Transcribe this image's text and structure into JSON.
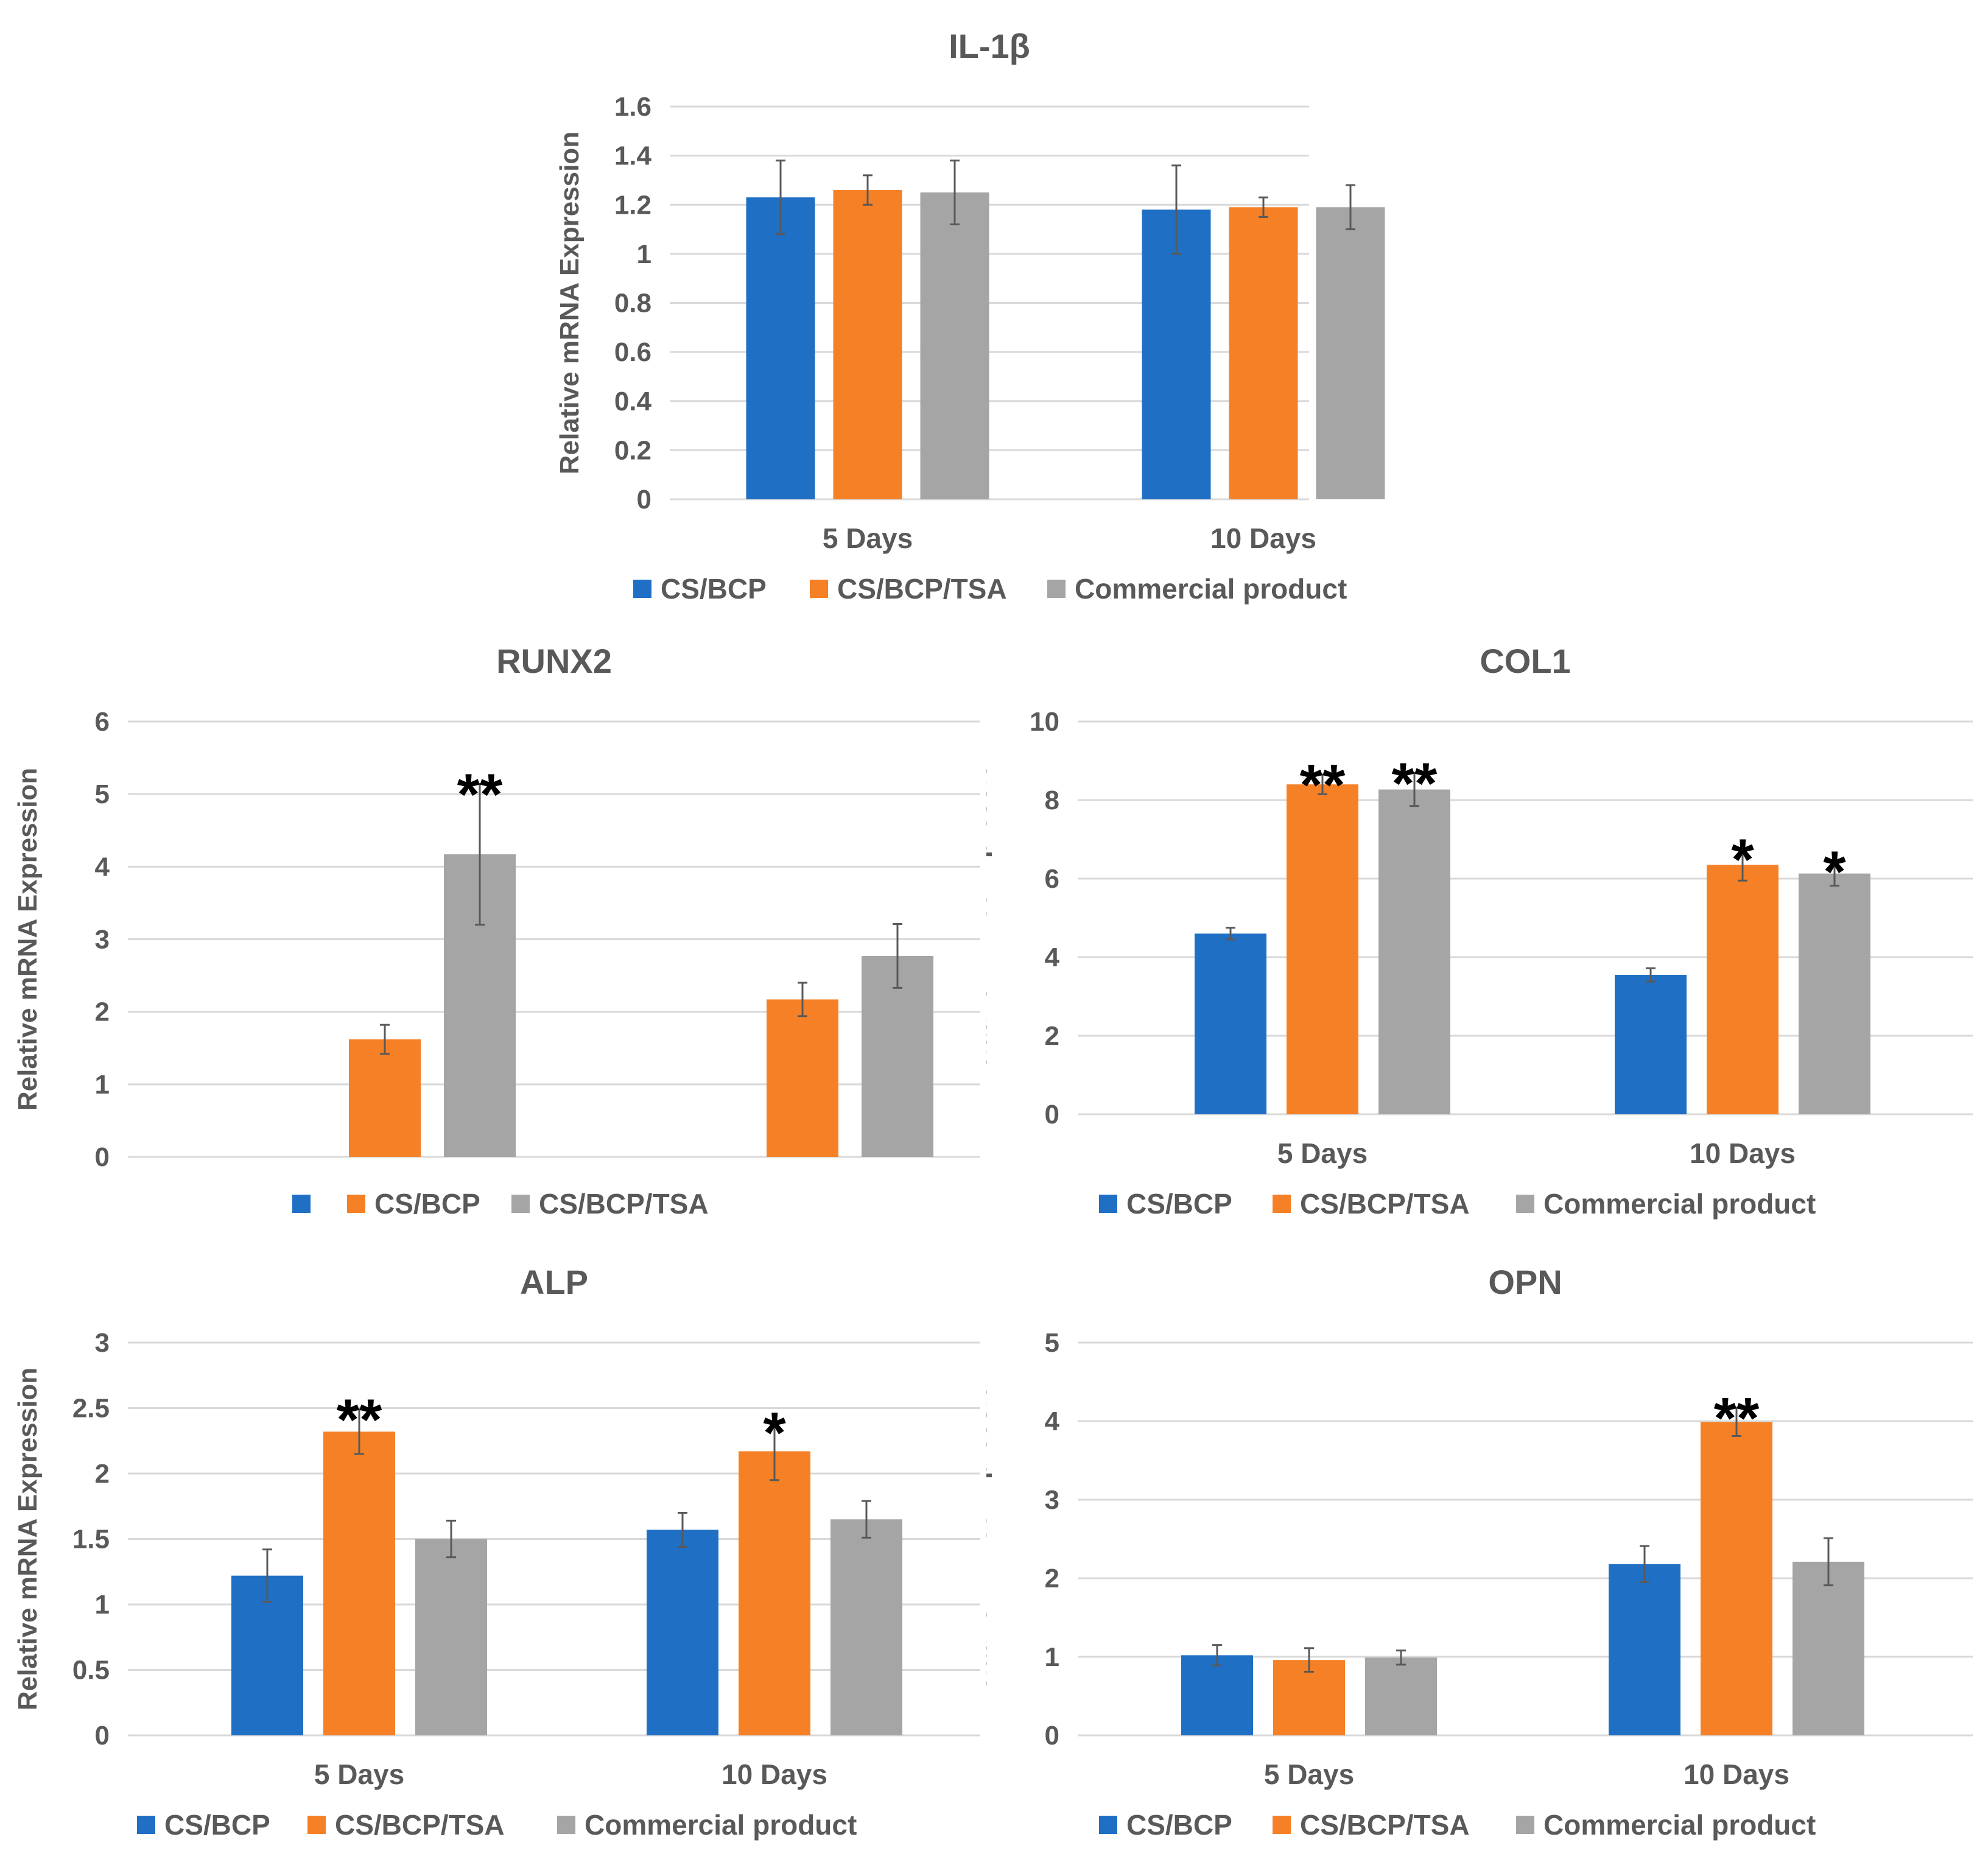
{
  "colors": {
    "cs_bcp": "#1f6fc5",
    "cs_bcp_tsa": "#f68026",
    "commercial": "#a5a5a5",
    "text": "#595959",
    "grid": "#d9d9d9",
    "significance": "#000000"
  },
  "chart_data": [
    {
      "id": "il1b",
      "type": "bar",
      "title": "IL-1β",
      "ylabel": "Relative mRNA Expression",
      "xlabel": "",
      "ylim": [
        0,
        1.6
      ],
      "yticks": [
        "0",
        "0.2",
        "0.4",
        "0.6",
        "0.8",
        "1",
        "1.2",
        "1.4",
        "1.6"
      ],
      "grid": true,
      "categories": [
        "5 Days",
        "10 Days"
      ],
      "legend": [
        "CS/BCP",
        "CS/BCP/TSA",
        "Commercial product"
      ],
      "series": [
        {
          "name": "CS/BCP",
          "values": [
            1.23,
            1.18
          ],
          "errors": [
            0.15,
            0.18
          ],
          "significance": [
            "",
            ""
          ]
        },
        {
          "name": "CS/BCP/TSA",
          "values": [
            1.26,
            1.19
          ],
          "errors": [
            0.06,
            0.04
          ],
          "significance": [
            "",
            ""
          ]
        },
        {
          "name": "Commercial product",
          "values": [
            1.25,
            1.19
          ],
          "errors": [
            0.13,
            0.09
          ],
          "significance": [
            "",
            ""
          ]
        }
      ]
    },
    {
      "id": "runx2",
      "type": "bar",
      "title": "RUNX2",
      "ylabel": "Relative mRNA Expression",
      "xlabel": "",
      "ylim": [
        0,
        6
      ],
      "yticks": [
        "0",
        "1",
        "2",
        "3",
        "4",
        "5",
        "6"
      ],
      "grid": true,
      "categories": [
        "",
        ""
      ],
      "legend": [
        "",
        "CS/BCP",
        "CS/BCP/TSA"
      ],
      "series": [
        {
          "name": "",
          "values": [
            null,
            null
          ],
          "errors": [
            null,
            null
          ],
          "significance": [
            "",
            ""
          ]
        },
        {
          "name": "CS/BCP",
          "values": [
            1.62,
            2.17
          ],
          "errors": [
            0.2,
            0.23
          ],
          "significance": [
            "",
            ""
          ]
        },
        {
          "name": "CS/BCP/TSA",
          "values": [
            4.17,
            2.77
          ],
          "errors": [
            0.97,
            0.44
          ],
          "significance": [
            "**",
            ""
          ]
        }
      ]
    },
    {
      "id": "col1",
      "type": "bar",
      "title": "COL1",
      "ylabel": "Relative mRNA Expression",
      "xlabel": "",
      "ylim": [
        0,
        10
      ],
      "yticks": [
        "0",
        "2",
        "4",
        "6",
        "8",
        "10"
      ],
      "grid": true,
      "categories": [
        "5 Days",
        "10 Days"
      ],
      "legend": [
        "CS/BCP",
        "CS/BCP/TSA",
        "Commercial product"
      ],
      "series": [
        {
          "name": "CS/BCP",
          "values": [
            4.6,
            3.55
          ],
          "errors": [
            0.15,
            0.17
          ],
          "significance": [
            "",
            ""
          ]
        },
        {
          "name": "CS/BCP/TSA",
          "values": [
            8.4,
            6.35
          ],
          "errors": [
            0.25,
            0.4
          ],
          "significance": [
            "**",
            "*"
          ]
        },
        {
          "name": "Commercial product",
          "values": [
            8.27,
            6.13
          ],
          "errors": [
            0.42,
            0.31
          ],
          "significance": [
            "**",
            "*"
          ]
        }
      ]
    },
    {
      "id": "alp",
      "type": "bar",
      "title": "ALP",
      "ylabel": "Relative mRNA Expression",
      "xlabel": "",
      "ylim": [
        0,
        3
      ],
      "yticks": [
        "0",
        "0.5",
        "1",
        "1.5",
        "2",
        "2.5",
        "3"
      ],
      "grid": true,
      "categories": [
        "5 Days",
        "10 Days"
      ],
      "legend": [
        "CS/BCP",
        "CS/BCP/TSA",
        "Commercial product"
      ],
      "series": [
        {
          "name": "CS/BCP",
          "values": [
            1.22,
            1.57
          ],
          "errors": [
            0.2,
            0.13
          ],
          "significance": [
            "",
            ""
          ]
        },
        {
          "name": "CS/BCP/TSA",
          "values": [
            2.32,
            2.17
          ],
          "errors": [
            0.17,
            0.22
          ],
          "significance": [
            "**",
            "*"
          ]
        },
        {
          "name": "Commercial product",
          "values": [
            1.5,
            1.65
          ],
          "errors": [
            0.14,
            0.14
          ],
          "significance": [
            "",
            ""
          ]
        }
      ]
    },
    {
      "id": "opn",
      "type": "bar",
      "title": "OPN",
      "ylabel": "Relative mRNA Expression",
      "xlabel": "",
      "ylim": [
        0,
        5
      ],
      "yticks": [
        "0",
        "1",
        "2",
        "3",
        "4",
        "5"
      ],
      "grid": true,
      "categories": [
        "5 Days",
        "10 Days"
      ],
      "legend": [
        "CS/BCP",
        "CS/BCP/TSA",
        "Commercial product"
      ],
      "series": [
        {
          "name": "CS/BCP",
          "values": [
            1.02,
            2.18
          ],
          "errors": [
            0.13,
            0.23
          ],
          "significance": [
            "",
            ""
          ]
        },
        {
          "name": "CS/BCP/TSA",
          "values": [
            0.96,
            3.99
          ],
          "errors": [
            0.15,
            0.18
          ],
          "significance": [
            "",
            "**"
          ]
        },
        {
          "name": "Commercial product",
          "values": [
            0.99,
            2.21
          ],
          "errors": [
            0.09,
            0.3
          ],
          "significance": [
            "",
            ""
          ]
        }
      ]
    }
  ]
}
